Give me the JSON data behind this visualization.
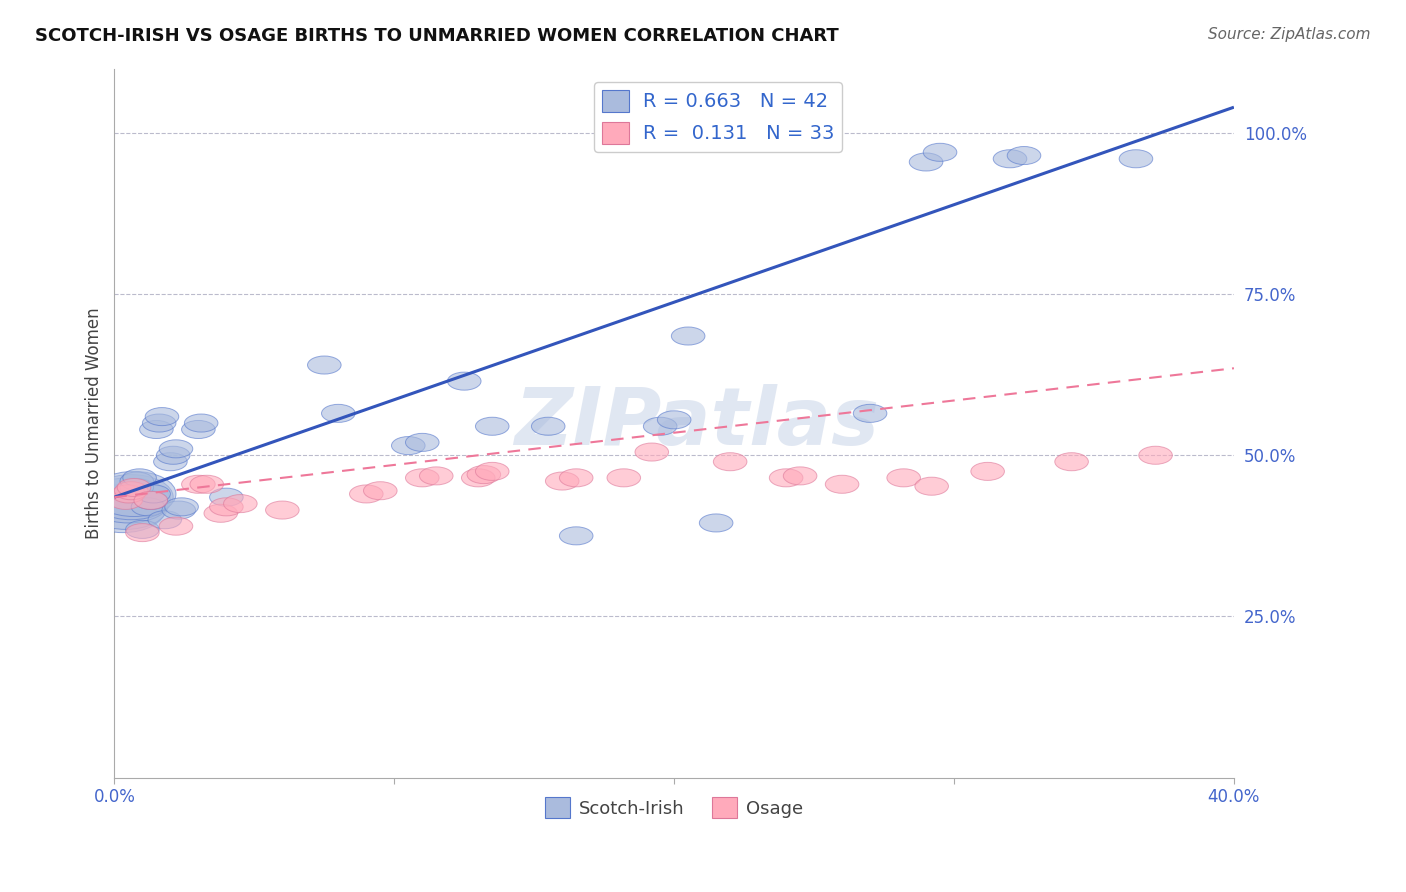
{
  "title": "SCOTCH-IRISH VS OSAGE BIRTHS TO UNMARRIED WOMEN CORRELATION CHART",
  "source": "Source: ZipAtlas.com",
  "ylabel": "Births to Unmarried Women",
  "xlim": [
    0.0,
    0.4
  ],
  "ylim": [
    0.0,
    1.1
  ],
  "ytick_labels": [
    "25.0%",
    "50.0%",
    "75.0%",
    "100.0%"
  ],
  "ytick_values": [
    0.25,
    0.5,
    0.75,
    1.0
  ],
  "background_color": "#ffffff",
  "grid_color": "#bbbbcc",
  "blue_fill": "#aabbdd",
  "blue_edge": "#5577cc",
  "pink_fill": "#ffaabb",
  "pink_edge": "#dd7799",
  "blue_line_color": "#3355bb",
  "pink_line_color": "#ee7799",
  "blue_R": 0.663,
  "blue_N": 42,
  "pink_R": 0.131,
  "pink_N": 33,
  "watermark": "ZIPatlas",
  "scotch_irish_x": [
    0.003,
    0.004,
    0.005,
    0.006,
    0.007,
    0.008,
    0.008,
    0.009,
    0.01,
    0.012,
    0.013,
    0.014,
    0.015,
    0.016,
    0.017,
    0.018,
    0.02,
    0.021,
    0.022,
    0.023,
    0.024,
    0.03,
    0.031,
    0.04,
    0.075,
    0.08,
    0.105,
    0.11,
    0.125,
    0.135,
    0.155,
    0.165,
    0.195,
    0.2,
    0.205,
    0.215,
    0.27,
    0.29,
    0.295,
    0.32,
    0.325,
    0.365
  ],
  "scotch_irish_y": [
    0.415,
    0.42,
    0.43,
    0.435,
    0.44,
    0.45,
    0.46,
    0.465,
    0.385,
    0.42,
    0.43,
    0.44,
    0.54,
    0.55,
    0.56,
    0.4,
    0.49,
    0.5,
    0.51,
    0.415,
    0.42,
    0.54,
    0.55,
    0.435,
    0.64,
    0.565,
    0.515,
    0.52,
    0.615,
    0.545,
    0.545,
    0.375,
    0.545,
    0.555,
    0.685,
    0.395,
    0.565,
    0.955,
    0.97,
    0.96,
    0.965,
    0.96
  ],
  "osage_x": [
    0.004,
    0.005,
    0.006,
    0.007,
    0.01,
    0.013,
    0.022,
    0.03,
    0.033,
    0.038,
    0.04,
    0.045,
    0.06,
    0.09,
    0.095,
    0.11,
    0.115,
    0.13,
    0.132,
    0.135,
    0.16,
    0.165,
    0.182,
    0.192,
    0.22,
    0.24,
    0.245,
    0.26,
    0.282,
    0.292,
    0.312,
    0.342,
    0.372
  ],
  "osage_y": [
    0.43,
    0.44,
    0.445,
    0.45,
    0.38,
    0.43,
    0.39,
    0.455,
    0.455,
    0.41,
    0.42,
    0.425,
    0.415,
    0.44,
    0.445,
    0.465,
    0.468,
    0.465,
    0.47,
    0.475,
    0.46,
    0.465,
    0.465,
    0.505,
    0.49,
    0.465,
    0.468,
    0.455,
    0.465,
    0.452,
    0.475,
    0.49,
    0.5
  ],
  "blue_line_x": [
    0.0,
    0.4
  ],
  "blue_line_y": [
    0.435,
    1.04
  ],
  "pink_line_x": [
    0.0,
    0.4
  ],
  "pink_line_y": [
    0.435,
    0.635
  ]
}
